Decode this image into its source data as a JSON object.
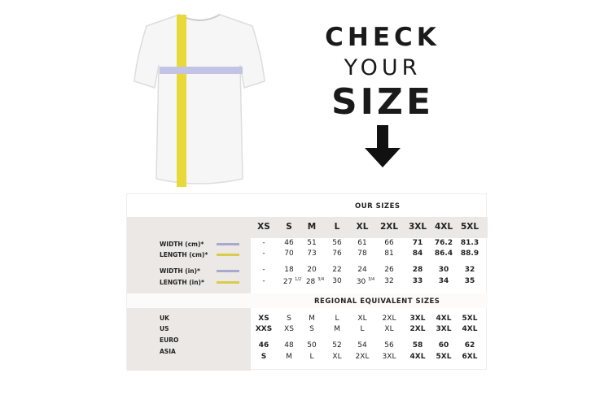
{
  "heading": {
    "line1": "CHECK",
    "line2": "YOUR",
    "line3": "SIZE"
  },
  "colors": {
    "width_line": "#a9a9d0",
    "length_line": "#d8cc4a",
    "band": "#ebe8e6"
  },
  "our_sizes": {
    "title": "OUR SIZES",
    "sizes": [
      "XS",
      "S",
      "M",
      "L",
      "XL",
      "2XL",
      "3XL",
      "4XL",
      "5XL"
    ],
    "rows": [
      {
        "label": "WIDTH (cm)*",
        "line": "width",
        "values": [
          "-",
          "46",
          "51",
          "56",
          "61",
          "66",
          "71",
          "76.2",
          "81.3"
        ]
      },
      {
        "label": "LENGTH (cm)*",
        "line": "length",
        "values": [
          "-",
          "70",
          "73",
          "76",
          "78",
          "81",
          "84",
          "86.4",
          "88.9"
        ]
      },
      {
        "label": "WIDTH (in)*",
        "line": "width",
        "values": [
          "-",
          "18",
          "20",
          "22",
          "24",
          "26",
          "28",
          "30",
          "32"
        ]
      },
      {
        "label": "LENGTH (in)*",
        "line": "length",
        "values": [
          "-",
          "27",
          "28",
          "30",
          "30",
          "32",
          "33",
          "34",
          "35"
        ],
        "fractions": [
          "",
          "1/2",
          "3/4",
          "",
          "3/4",
          "",
          "",
          "",
          ""
        ]
      }
    ]
  },
  "regional": {
    "title": "REGIONAL EQUIVALENT SIZES",
    "labels": [
      "UK",
      "US",
      "EURO",
      "ASIA"
    ],
    "rows": [
      [
        "XS",
        "S",
        "M",
        "L",
        "XL",
        "2XL",
        "3XL",
        "4XL",
        "5XL"
      ],
      [
        "XXS",
        "XS",
        "S",
        "M",
        "L",
        "XL",
        "2XL",
        "3XL",
        "4XL"
      ],
      [
        "46",
        "48",
        "50",
        "52",
        "54",
        "56",
        "58",
        "60",
        "62"
      ],
      [
        "S",
        "M",
        "L",
        "XL",
        "2XL",
        "3XL",
        "4XL",
        "5XL",
        "6XL"
      ]
    ]
  }
}
